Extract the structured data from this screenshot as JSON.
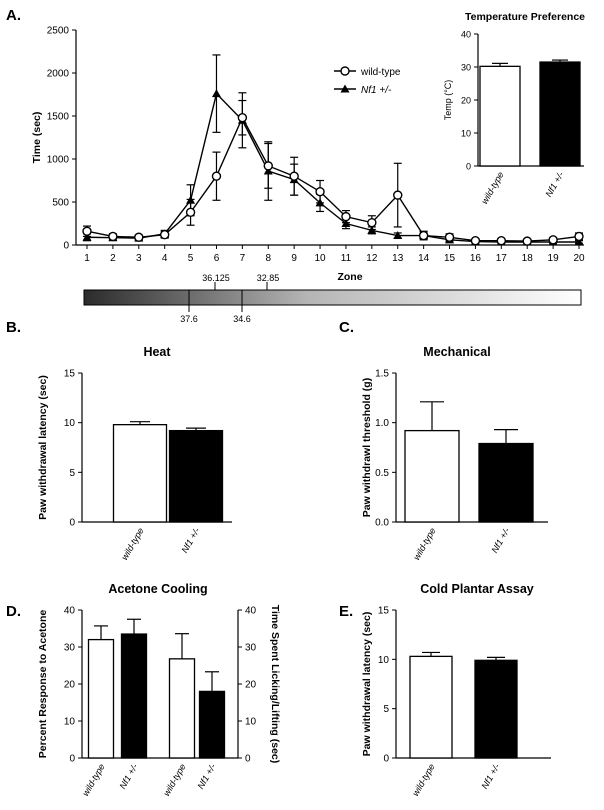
{
  "panel_labels": {
    "A": "A.",
    "B": "B.",
    "C": "C.",
    "D": "D.",
    "E": "E."
  },
  "gradient": {
    "upper_labels": [
      "36.125",
      "32.85"
    ],
    "lower_labels": [
      "37.6",
      "34.6"
    ]
  },
  "colors": {
    "wild_type_fill": "#ffffff",
    "nf1_fill": "#000000",
    "axis": "#000000"
  },
  "chart_data": [
    {
      "id": "A-main",
      "type": "line",
      "title": "",
      "xlabel": "Zone",
      "ylabel": "Time (sec)",
      "ylim": [
        0,
        2500
      ],
      "yticks": [
        0,
        500,
        1000,
        1500,
        2000,
        2500
      ],
      "x": [
        1,
        2,
        3,
        4,
        5,
        6,
        7,
        8,
        9,
        10,
        11,
        12,
        13,
        14,
        15,
        16,
        17,
        18,
        19,
        20
      ],
      "legend": "top-right",
      "series": [
        {
          "name": "wild-type",
          "marker": "circle-open",
          "values": [
            160,
            100,
            90,
            120,
            380,
            800,
            1480,
            920,
            800,
            620,
            330,
            260,
            580,
            110,
            90,
            50,
            50,
            45,
            60,
            100
          ],
          "errors": [
            60,
            30,
            25,
            40,
            150,
            280,
            200,
            260,
            220,
            130,
            70,
            80,
            370,
            50,
            40,
            20,
            20,
            20,
            25,
            40
          ]
        },
        {
          "name": "Nf1 +/-",
          "marker": "triangle-filled",
          "values": [
            90,
            85,
            80,
            130,
            520,
            1760,
            1450,
            860,
            760,
            490,
            250,
            170,
            110,
            110,
            60,
            40,
            35,
            35,
            35,
            35
          ],
          "errors": [
            40,
            30,
            25,
            40,
            180,
            450,
            320,
            340,
            180,
            100,
            60,
            40,
            30,
            40,
            25,
            15,
            15,
            15,
            15,
            15
          ]
        }
      ]
    },
    {
      "id": "A-inset",
      "type": "bar",
      "title": "Temperature Preference",
      "xlabel": "",
      "ylabel": "Temp (°C)",
      "ylim": [
        0,
        40
      ],
      "yticks": [
        0,
        10,
        20,
        30,
        40
      ],
      "categories": [
        "wild-type",
        "Nf1 +/-"
      ],
      "values": [
        30.2,
        31.5
      ],
      "errors": [
        0.9,
        0.6
      ]
    },
    {
      "id": "B",
      "type": "bar",
      "title": "Heat",
      "xlabel": "",
      "ylabel": "Paw withdrawal latency (sec)",
      "ylim": [
        0,
        15
      ],
      "yticks": [
        0,
        5,
        10,
        15
      ],
      "categories": [
        "wild-type",
        "Nf1 +/-"
      ],
      "values": [
        9.8,
        9.2
      ],
      "errors": [
        0.3,
        0.25
      ]
    },
    {
      "id": "C",
      "type": "bar",
      "title": "Mechanical",
      "xlabel": "",
      "ylabel": "Paw withdrawl threshold (g)",
      "ylim": [
        0,
        1.5
      ],
      "yticks": [
        0.0,
        0.5,
        1.0,
        1.5
      ],
      "categories": [
        "wild-type",
        "Nf1 +/-"
      ],
      "values": [
        0.92,
        0.79
      ],
      "errors": [
        0.29,
        0.14
      ]
    },
    {
      "id": "D",
      "type": "bar",
      "title": "Acetone Cooling",
      "xlabel": "",
      "ylabel": "Percent Response to Acetone",
      "ylim": [
        0,
        40
      ],
      "yticks": [
        0,
        10,
        20,
        30,
        40
      ],
      "ylabel_right": "Time Spent Licking/Lifting (sec)",
      "ylim_right": [
        0,
        40
      ],
      "yticks_right": [
        0,
        10,
        20,
        30,
        40
      ],
      "categories": [
        "wild-type",
        "Nf1 +/-",
        "wild-type",
        "Nf1 +/-"
      ],
      "values": [
        32,
        33.5,
        26.8,
        18
      ],
      "errors": [
        3.7,
        4,
        6.8,
        5.3
      ]
    },
    {
      "id": "E",
      "type": "bar",
      "title": "Cold Plantar Assay",
      "xlabel": "",
      "ylabel": "Paw withdrawal latency (sec)",
      "ylim": [
        0,
        15
      ],
      "yticks": [
        0,
        5,
        10,
        15
      ],
      "categories": [
        "wild-type",
        "Nf1 +/-"
      ],
      "values": [
        10.3,
        9.9
      ],
      "errors": [
        0.4,
        0.3
      ]
    }
  ]
}
